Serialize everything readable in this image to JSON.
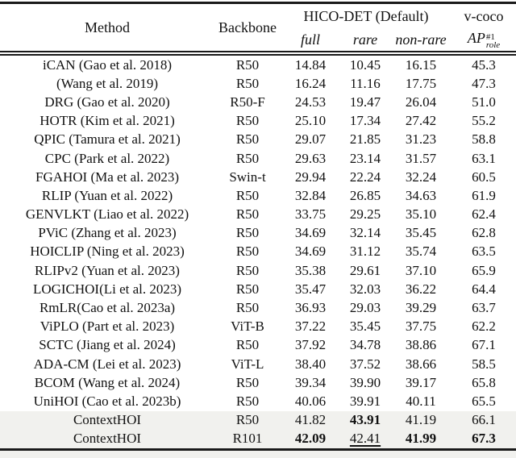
{
  "page": {
    "highlight_color": "#f1f1ee",
    "rule_color": "#1a1a1a",
    "text_color": "#111111",
    "background": "#ffffff"
  },
  "table": {
    "header": {
      "method": "Method",
      "backbone": "Backbone",
      "hico_group": "HICO-DET (Default)",
      "vcoco_group": "v-coco",
      "sub_full": "full",
      "sub_rare": "rare",
      "sub_nonrare": "non-rare",
      "ap_base": "AP",
      "ap_sup": "#1",
      "ap_sub": "role"
    },
    "rows": [
      {
        "method": "iCAN (Gao et al. 2018)",
        "backbone": "R50",
        "values": [
          "14.84",
          "10.45",
          "16.15",
          "45.3"
        ]
      },
      {
        "method": "(Wang et al. 2019)",
        "backbone": "R50",
        "values": [
          "16.24",
          "11.16",
          "17.75",
          "47.3"
        ]
      },
      {
        "method": "DRG (Gao et al. 2020)",
        "backbone": "R50-F",
        "values": [
          "24.53",
          "19.47",
          "26.04",
          "51.0"
        ]
      },
      {
        "method": "HOTR (Kim et al. 2021)",
        "backbone": "R50",
        "values": [
          "25.10",
          "17.34",
          "27.42",
          "55.2"
        ]
      },
      {
        "method": "QPIC (Tamura et al. 2021)",
        "backbone": "R50",
        "values": [
          "29.07",
          "21.85",
          "31.23",
          "58.8"
        ]
      },
      {
        "method": "CPC (Park et al. 2022)",
        "backbone": "R50",
        "values": [
          "29.63",
          "23.14",
          "31.57",
          "63.1"
        ]
      },
      {
        "method": "FGAHOI (Ma et al. 2023)",
        "backbone": "Swin-t",
        "values": [
          "29.94",
          "22.24",
          "32.24",
          "60.5"
        ]
      },
      {
        "method": "RLIP (Yuan et al. 2022)",
        "backbone": "R50",
        "values": [
          "32.84",
          "26.85",
          "34.63",
          "61.9"
        ]
      },
      {
        "method": "GENVLKT (Liao et al. 2022)",
        "backbone": "R50",
        "values": [
          "33.75",
          "29.25",
          "35.10",
          "62.4"
        ]
      },
      {
        "method": "PViC (Zhang et al. 2023)",
        "backbone": "R50",
        "values": [
          "34.69",
          "32.14",
          "35.45",
          "62.8"
        ]
      },
      {
        "method": "HOICLIP (Ning et al. 2023)",
        "backbone": "R50",
        "values": [
          "34.69",
          "31.12",
          "35.74",
          "63.5"
        ]
      },
      {
        "method": "RLIPv2 (Yuan et al. 2023)",
        "backbone": "R50",
        "values": [
          "35.38",
          "29.61",
          "37.10",
          "65.9"
        ]
      },
      {
        "method": "LOGICHOI(Li et al. 2023)",
        "backbone": "R50",
        "values": [
          "35.47",
          "32.03",
          "36.22",
          "64.4"
        ]
      },
      {
        "method": "RmLR(Cao et al. 2023a)",
        "backbone": "R50",
        "values": [
          "36.93",
          "29.03",
          "39.29",
          "63.7"
        ]
      },
      {
        "method": "ViPLO (Part et al. 2023)",
        "backbone": "ViT-B",
        "values": [
          "37.22",
          "35.45",
          "37.75",
          "62.2"
        ]
      },
      {
        "method": "SCTC (Jiang et al. 2024)",
        "backbone": "R50",
        "values": [
          "37.92",
          "34.78",
          "38.86",
          "67.1"
        ]
      },
      {
        "method": "ADA-CM (Lei et al. 2023)",
        "backbone": "ViT-L",
        "values": [
          "38.40",
          "37.52",
          "38.66",
          "58.5"
        ]
      },
      {
        "method": "BCOM (Wang et al. 2024)",
        "backbone": "R50",
        "values": [
          "39.34",
          "39.90",
          "39.17",
          "65.8"
        ]
      },
      {
        "method": "UniHOI (Cao et al. 2023b)",
        "backbone": "R50",
        "values": [
          "40.06",
          "39.91",
          "40.11",
          "65.5"
        ]
      },
      {
        "method": "ContextHOI",
        "backbone": "R50",
        "values": [
          "41.82",
          "43.91",
          "41.19",
          "66.1"
        ],
        "highlight": true,
        "value_styles": [
          null,
          "bold",
          null,
          null
        ]
      },
      {
        "method": "ContextHOI",
        "backbone": "R101",
        "values": [
          "42.09",
          "42.41",
          "41.99",
          "67.3"
        ],
        "highlight": true,
        "value_styles": [
          "bold",
          "underline",
          "bold",
          "bold"
        ]
      }
    ]
  }
}
